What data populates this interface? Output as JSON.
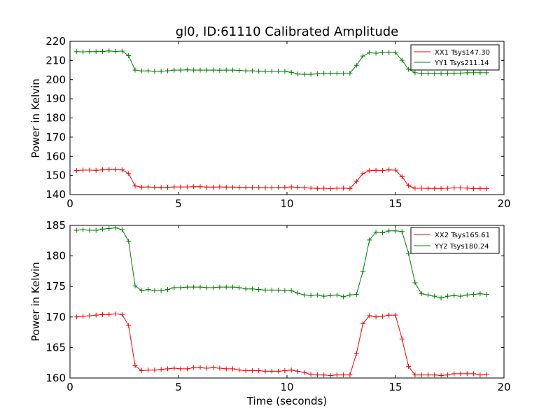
{
  "chart_data": [
    {
      "type": "line",
      "title": "gl0, ID:61110 Calibrated Amplitude",
      "xlabel": "",
      "ylabel": "Power in Kelvin",
      "xlim": [
        0,
        20
      ],
      "ylim": [
        140,
        220
      ],
      "xticks": [
        0,
        5,
        10,
        15,
        20
      ],
      "yticks": [
        140,
        150,
        160,
        170,
        180,
        190,
        200,
        210,
        220
      ],
      "legend_position": "top-right",
      "grid": false,
      "x": [
        0.3,
        0.6,
        0.9,
        1.2,
        1.5,
        1.8,
        2.1,
        2.4,
        2.7,
        3.0,
        3.3,
        3.6,
        3.9,
        4.2,
        4.5,
        4.8,
        5.1,
        5.4,
        5.7,
        6.0,
        6.3,
        6.6,
        6.9,
        7.2,
        7.5,
        7.8,
        8.1,
        8.4,
        8.7,
        9.0,
        9.3,
        9.6,
        9.9,
        10.2,
        10.5,
        10.8,
        11.1,
        11.4,
        11.7,
        12.0,
        12.3,
        12.6,
        12.9,
        13.2,
        13.5,
        13.8,
        14.1,
        14.4,
        14.7,
        15.0,
        15.3,
        15.6,
        15.9,
        16.2,
        16.5,
        16.8,
        17.1,
        17.4,
        17.7,
        18.0,
        18.3,
        18.6,
        18.9,
        19.2
      ],
      "series": [
        {
          "name": "XX1 Tsys147.30",
          "color": "#ff0000",
          "values": [
            152.6,
            152.8,
            152.8,
            152.7,
            152.9,
            153.0,
            153.0,
            152.9,
            151.0,
            144.5,
            143.9,
            144.0,
            143.8,
            143.8,
            143.8,
            144.0,
            144.0,
            144.0,
            144.1,
            144.1,
            143.9,
            143.9,
            144.0,
            143.9,
            143.9,
            143.8,
            143.8,
            143.7,
            143.7,
            143.6,
            143.6,
            143.7,
            143.8,
            144.0,
            143.8,
            143.6,
            143.4,
            143.2,
            143.3,
            143.1,
            143.3,
            143.4,
            143.1,
            146.9,
            151.0,
            152.5,
            152.7,
            152.6,
            152.9,
            152.8,
            149.3,
            144.6,
            143.3,
            143.3,
            143.2,
            143.2,
            143.2,
            143.3,
            143.5,
            143.5,
            143.4,
            143.1,
            143.2,
            143.1
          ]
        },
        {
          "name": "YY1 Tsys211.14",
          "color": "#008000",
          "values": [
            214.6,
            214.5,
            214.6,
            214.6,
            214.7,
            215.0,
            214.7,
            214.9,
            212.5,
            205.0,
            204.5,
            204.6,
            204.3,
            204.4,
            204.6,
            205.0,
            205.0,
            205.1,
            205.0,
            205.0,
            205.0,
            205.0,
            204.9,
            205.0,
            205.0,
            204.8,
            204.6,
            204.6,
            204.4,
            204.3,
            204.3,
            204.3,
            204.3,
            203.8,
            202.9,
            202.8,
            202.8,
            203.0,
            203.3,
            203.3,
            203.3,
            203.2,
            203.4,
            207.5,
            212.3,
            214.0,
            213.8,
            214.2,
            214.2,
            214.1,
            210.1,
            205.4,
            203.6,
            203.3,
            203.1,
            203.1,
            203.1,
            203.3,
            203.3,
            203.4,
            203.6,
            203.6,
            203.6,
            203.6
          ]
        }
      ]
    },
    {
      "type": "line",
      "title": "",
      "xlabel": "Time (seconds)",
      "ylabel": "Power in Kelvin",
      "xlim": [
        0,
        20
      ],
      "ylim": [
        160,
        185
      ],
      "xticks": [
        0,
        5,
        10,
        15,
        20
      ],
      "yticks": [
        160,
        165,
        170,
        175,
        180,
        185
      ],
      "legend_position": "top-right",
      "grid": false,
      "x": [
        0.3,
        0.6,
        0.9,
        1.2,
        1.5,
        1.8,
        2.1,
        2.4,
        2.7,
        3.0,
        3.3,
        3.6,
        3.9,
        4.2,
        4.5,
        4.8,
        5.1,
        5.4,
        5.7,
        6.0,
        6.3,
        6.6,
        6.9,
        7.2,
        7.5,
        7.8,
        8.1,
        8.4,
        8.7,
        9.0,
        9.3,
        9.6,
        9.9,
        10.2,
        10.5,
        10.8,
        11.1,
        11.4,
        11.7,
        12.0,
        12.3,
        12.6,
        12.9,
        13.2,
        13.5,
        13.8,
        14.1,
        14.4,
        14.7,
        15.0,
        15.3,
        15.6,
        15.9,
        16.2,
        16.5,
        16.8,
        17.1,
        17.4,
        17.7,
        18.0,
        18.3,
        18.6,
        18.9,
        19.2
      ],
      "series": [
        {
          "name": "XX2 Tsys165.61",
          "color": "#ff0000",
          "values": [
            170.0,
            170.1,
            170.2,
            170.3,
            170.4,
            170.4,
            170.5,
            170.4,
            168.6,
            162.0,
            161.2,
            161.3,
            161.3,
            161.4,
            161.5,
            161.6,
            161.5,
            161.5,
            161.7,
            161.7,
            161.6,
            161.7,
            161.6,
            161.5,
            161.5,
            161.3,
            161.2,
            161.2,
            161.2,
            161.1,
            161.1,
            161.1,
            161.2,
            161.3,
            161.1,
            160.9,
            160.6,
            160.5,
            160.5,
            160.4,
            160.5,
            160.5,
            160.5,
            164.0,
            168.9,
            170.2,
            170.0,
            170.1,
            170.3,
            170.3,
            166.4,
            161.9,
            160.5,
            160.5,
            160.5,
            160.5,
            160.4,
            160.5,
            160.7,
            160.7,
            160.7,
            160.7,
            160.5,
            160.6
          ]
        },
        {
          "name": "YY2 Tsys180.24",
          "color": "#008000",
          "values": [
            184.2,
            184.3,
            184.2,
            184.2,
            184.4,
            184.5,
            184.6,
            184.3,
            182.4,
            175.1,
            174.3,
            174.5,
            174.3,
            174.3,
            174.5,
            174.8,
            174.8,
            174.9,
            174.9,
            174.9,
            174.8,
            174.8,
            174.9,
            174.9,
            174.9,
            174.8,
            174.6,
            174.6,
            174.5,
            174.4,
            174.4,
            174.4,
            174.3,
            174.3,
            173.9,
            173.6,
            173.5,
            173.6,
            173.4,
            173.5,
            173.6,
            173.3,
            173.6,
            173.7,
            177.5,
            182.6,
            183.9,
            183.8,
            184.1,
            184.1,
            184.0,
            180.4,
            175.6,
            173.8,
            173.6,
            173.4,
            173.1,
            173.4,
            173.5,
            173.4,
            173.6,
            173.7,
            173.8,
            173.7
          ]
        }
      ]
    }
  ]
}
